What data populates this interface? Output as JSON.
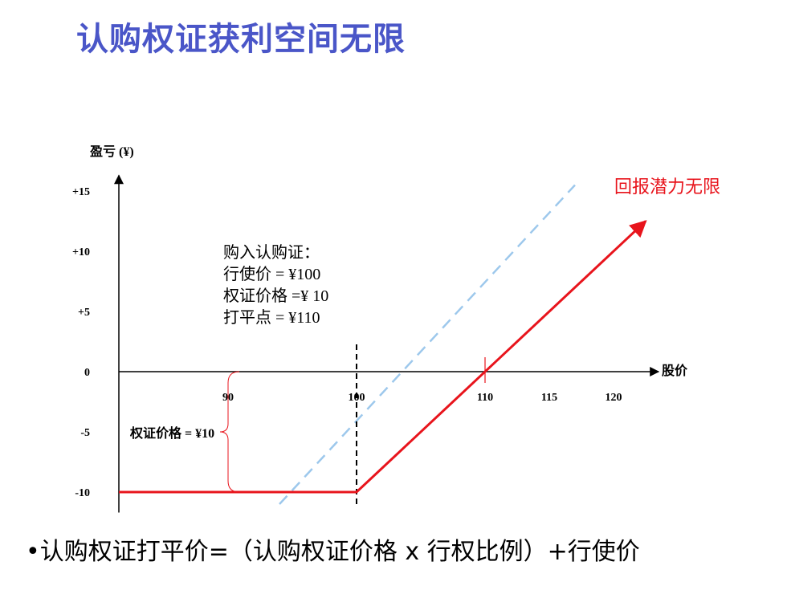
{
  "page": {
    "title": "认购权证获利空间无限",
    "bottom_formula": "•认购权证打平价=（认购权证价格 x 行权比例）+行使价"
  },
  "chart_data": {
    "type": "line",
    "ylabel": "盈亏 (¥)",
    "xlabel": "股价",
    "x_ticks": [
      90,
      100,
      110,
      115,
      120
    ],
    "y_ticks": [
      15,
      10,
      5,
      0,
      -5,
      -10
    ],
    "y_tick_labels": [
      "+15",
      "+10",
      "+5",
      "0",
      "-5",
      "-10"
    ],
    "xlim": [
      80,
      125
    ],
    "ylim": [
      -11,
      16
    ],
    "series": [
      {
        "role": "payoff",
        "color": "#e8141c",
        "points": [
          [
            81.5,
            -10
          ],
          [
            100,
            -10
          ],
          [
            122.5,
            12.5
          ]
        ]
      },
      {
        "role": "reference",
        "color": "#9dc8ec",
        "dashed": true,
        "points": [
          [
            94,
            -11
          ],
          [
            117,
            15.5
          ]
        ]
      }
    ],
    "strike_line": {
      "x": 100,
      "y_range": [
        -11,
        2.5
      ]
    },
    "breakeven_marker": {
      "x": 110,
      "y": 0
    },
    "premium_brace": {
      "x": 90,
      "y_range": [
        -10,
        0
      ],
      "label": "权证价格 = ¥10"
    },
    "annotation_lines": [
      "购入认购证：",
      "行使价 = ¥100",
      "权证价格 =¥ 10",
      "打平点 = ¥110"
    ],
    "arrow_label": "回报潜力无限",
    "colors": {
      "title": "#4a56c8",
      "payoff": "#e8141c",
      "reference": "#9dc8ec",
      "axis": "#000000"
    }
  }
}
